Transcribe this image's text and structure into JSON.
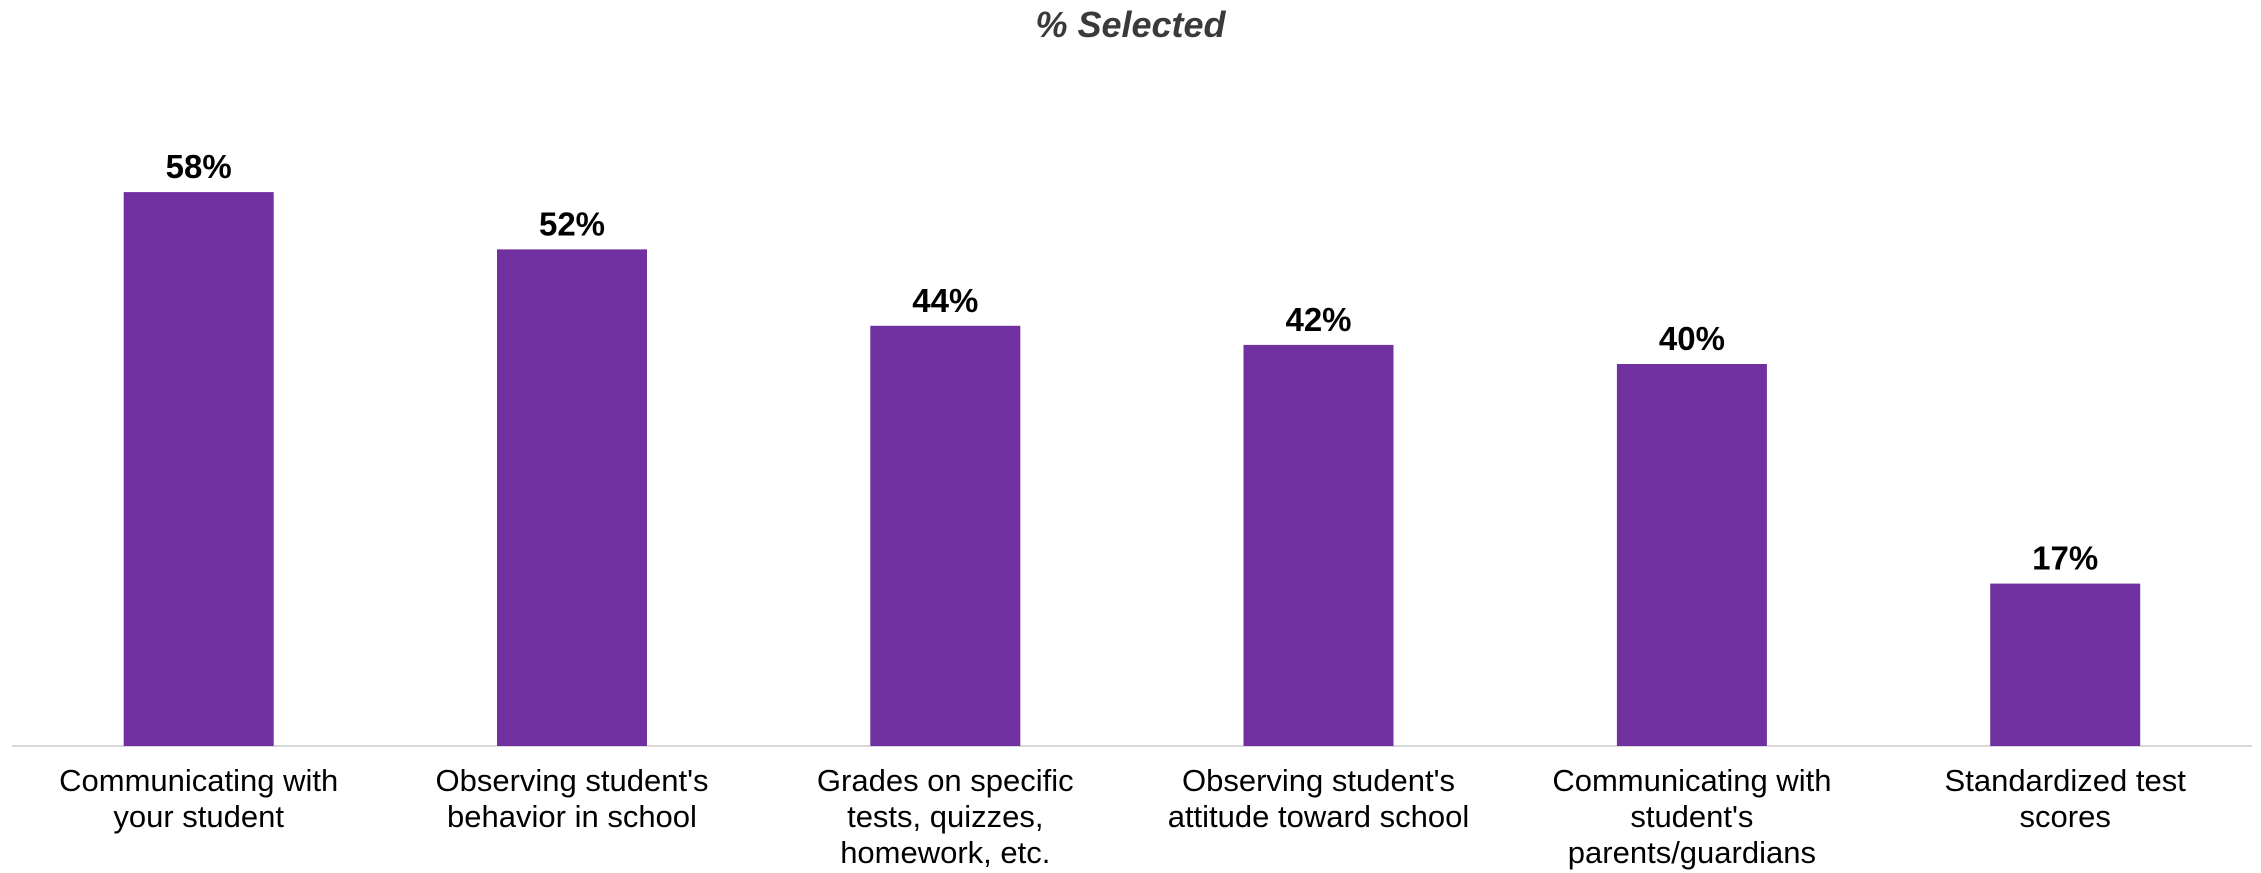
{
  "chart_data": {
    "type": "bar",
    "title": "% Selected",
    "xlabel": "",
    "ylabel": "",
    "categories": [
      "Communicating with your student",
      "Observing student's behavior in school",
      "Grades on specific tests, quizzes, homework, etc.",
      "Observing student's attitude toward school",
      "Communicating with student's parents/guardians",
      "Standardized test scores"
    ],
    "values": [
      58,
      52,
      44,
      42,
      40,
      17
    ],
    "data_labels": [
      "58%",
      "52%",
      "44%",
      "42%",
      "40%",
      "17%"
    ],
    "ylim": [
      0,
      60
    ],
    "grid": false,
    "legend": "none",
    "bar_color": "#7030A0",
    "axis_color": "#d9d9d9"
  }
}
